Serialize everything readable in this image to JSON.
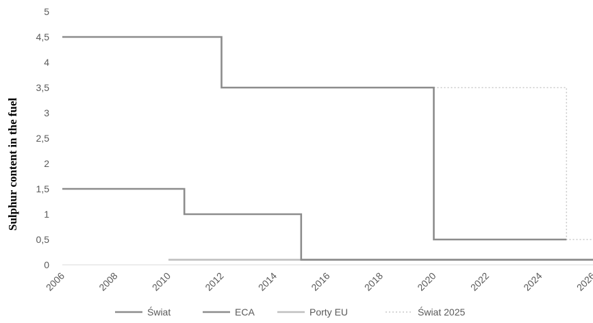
{
  "chart_data": {
    "type": "line",
    "title": "",
    "xlabel": "",
    "ylabel": "Sulphur  content in the fuel",
    "xlim": [
      2006,
      2026
    ],
    "ylim": [
      0,
      5
    ],
    "x_ticks": [
      "2006",
      "2008",
      "2010",
      "2012",
      "2014",
      "2016",
      "2018",
      "2020",
      "2022",
      "2024",
      "2026"
    ],
    "y_ticks": [
      "0",
      "0,5",
      "1",
      "1,5",
      "2",
      "2,5",
      "3",
      "3,5",
      "4",
      "4,5",
      "5"
    ],
    "grid": false,
    "legend_position": "bottom",
    "series": [
      {
        "name": "Świat",
        "style": "solid",
        "color": "#8c8c8c",
        "step": true,
        "points": [
          [
            2006,
            4.5
          ],
          [
            2012,
            4.5
          ],
          [
            2012,
            3.5
          ],
          [
            2020,
            3.5
          ],
          [
            2020,
            0.5
          ],
          [
            2025,
            0.5
          ]
        ]
      },
      {
        "name": "ECA",
        "style": "solid",
        "color": "#8c8c8c",
        "step": true,
        "points": [
          [
            2006,
            1.5
          ],
          [
            2010.6,
            1.5
          ],
          [
            2010.6,
            1.0
          ],
          [
            2015,
            1.0
          ],
          [
            2015,
            0.1
          ],
          [
            2026,
            0.1
          ]
        ]
      },
      {
        "name": "Porty EU",
        "style": "solid",
        "color": "#bfbfbf",
        "step": false,
        "points": [
          [
            2010,
            0.1
          ],
          [
            2026,
            0.1
          ]
        ]
      },
      {
        "name": "Świat 2025",
        "style": "dotted",
        "color": "#c8c8c8",
        "step": true,
        "points": [
          [
            2020,
            3.5
          ],
          [
            2025,
            3.5
          ],
          [
            2025,
            0.5
          ],
          [
            2026,
            0.5
          ]
        ]
      }
    ]
  }
}
